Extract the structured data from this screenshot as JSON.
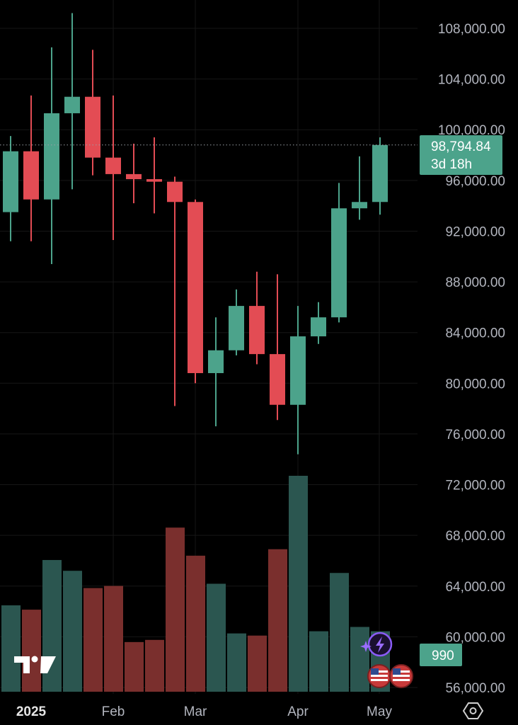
{
  "chart_data": {
    "type": "candlestick",
    "timeframe": "weekly",
    "x_labels": [
      "2025",
      "Feb",
      "Mar",
      "Apr",
      "May"
    ],
    "y_ticks": [
      "108,000.00",
      "104,000.00",
      "100,000.00",
      "96,000.00",
      "92,000.00",
      "88,000.00",
      "84,000.00",
      "80,000.00",
      "76,000.00",
      "72,000.00",
      "68,000.00",
      "64,000.00",
      "60,000.00",
      "56,000.00"
    ],
    "ylim": [
      55500,
      110000
    ],
    "candles": [
      {
        "open": 93500,
        "high": 99500,
        "low": 91200,
        "close": 98300,
        "volume_level": 0.4
      },
      {
        "open": 98300,
        "high": 102700,
        "low": 91200,
        "close": 94500,
        "volume_level": 0.38
      },
      {
        "open": 94500,
        "high": 106500,
        "low": 89400,
        "close": 101300,
        "volume_level": 0.61
      },
      {
        "open": 101300,
        "high": 109200,
        "low": 95300,
        "close": 102600,
        "volume_level": 0.56
      },
      {
        "open": 102600,
        "high": 106300,
        "low": 96400,
        "close": 97800,
        "volume_level": 0.48
      },
      {
        "open": 97800,
        "high": 102700,
        "low": 91300,
        "close": 96500,
        "volume_level": 0.49
      },
      {
        "open": 96500,
        "high": 98900,
        "low": 94200,
        "close": 96100,
        "volume_level": 0.23
      },
      {
        "open": 96100,
        "high": 99400,
        "low": 93400,
        "close": 95900,
        "volume_level": 0.24
      },
      {
        "open": 95900,
        "high": 96300,
        "low": 78200,
        "close": 94300,
        "volume_level": 0.76
      },
      {
        "open": 94300,
        "high": 94500,
        "low": 80000,
        "close": 80800,
        "volume_level": 0.63
      },
      {
        "open": 80800,
        "high": 85200,
        "low": 76600,
        "close": 82600,
        "volume_level": 0.5
      },
      {
        "open": 82600,
        "high": 87400,
        "low": 82200,
        "close": 86100,
        "volume_level": 0.27
      },
      {
        "open": 86100,
        "high": 88800,
        "low": 81500,
        "close": 82300,
        "volume_level": 0.26
      },
      {
        "open": 82300,
        "high": 88600,
        "low": 77100,
        "close": 78300,
        "volume_level": 0.66
      },
      {
        "open": 78300,
        "high": 86100,
        "low": 74400,
        "close": 83700,
        "volume_level": 1.0
      },
      {
        "open": 83700,
        "high": 86400,
        "low": 83100,
        "close": 85200,
        "volume_level": 0.28
      },
      {
        "open": 85200,
        "high": 95800,
        "low": 84800,
        "close": 93800,
        "volume_level": 0.55
      },
      {
        "open": 93800,
        "high": 97900,
        "low": 92900,
        "close": 94300,
        "volume_level": 0.3
      },
      {
        "open": 94300,
        "high": 99400,
        "low": 93300,
        "close": 98794.84,
        "volume_level": 0.28
      }
    ],
    "last_price": "98,794.84",
    "countdown": "3d 18h",
    "volume_label": "990",
    "grid": true,
    "colors": {
      "up": "#4ca38b",
      "down": "#e34c54",
      "volume_up": "#2b5650",
      "volume_down": "#7a2f2d",
      "label_bg": "#4ca38b",
      "grid": "#161616",
      "text": "#b2b5be"
    }
  },
  "overlay": {
    "logo": "TV",
    "icons": [
      "flash-sparkle-icon",
      "us-flag-icon",
      "us-flag-icon",
      "settings-hexagon-icon"
    ]
  }
}
